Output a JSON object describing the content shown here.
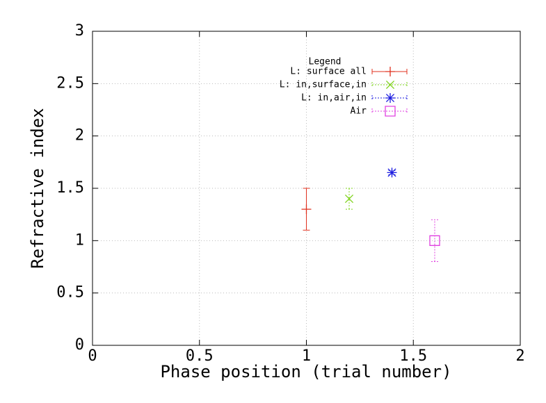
{
  "chart_data": {
    "type": "scatter",
    "xlabel": "Phase position (trial number)",
    "ylabel": "Refractive index",
    "legend_title": "Legend",
    "xlim": [
      0,
      2
    ],
    "xticks": [
      0,
      0.5,
      1,
      1.5,
      2
    ],
    "ylim": [
      0,
      3
    ],
    "yticks": [
      0,
      0.5,
      1,
      1.5,
      2,
      2.5,
      3
    ],
    "grid": true,
    "legend_position": "top",
    "series": [
      {
        "name": "L: surface all",
        "color": "#e0301e",
        "marker": "plus",
        "dashed": false,
        "x": [
          1.0
        ],
        "values": [
          1.3
        ],
        "errors": [
          0.2
        ]
      },
      {
        "name": "L: in,surface,in",
        "color": "#7fd31c",
        "marker": "cross",
        "dashed": true,
        "x": [
          1.2
        ],
        "values": [
          1.4
        ],
        "errors": [
          0.1
        ]
      },
      {
        "name": "L: in,air,in",
        "color": "#1c1ce0",
        "marker": "star",
        "dashed": true,
        "x": [
          1.4
        ],
        "values": [
          1.65
        ],
        "errors": [
          0.02
        ]
      },
      {
        "name": "Air",
        "color": "#e040e0",
        "marker": "square",
        "dashed": true,
        "x": [
          1.6
        ],
        "values": [
          1.0
        ],
        "errors": [
          0.2
        ]
      }
    ]
  }
}
